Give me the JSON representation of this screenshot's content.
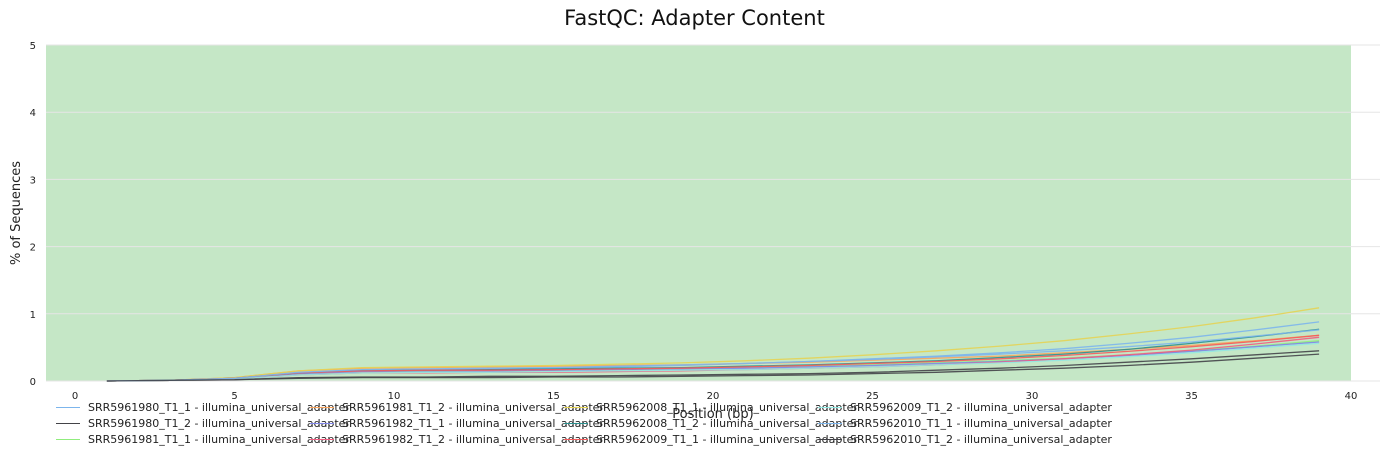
{
  "chart_data": {
    "type": "line",
    "title": "FastQC: Adapter Content",
    "xlabel": "Position (bp)",
    "ylabel": "% of Sequences",
    "xlim": [
      0,
      40
    ],
    "ylim": [
      0,
      5
    ],
    "xticks": [
      0,
      5,
      10,
      15,
      20,
      25,
      30,
      35,
      40
    ],
    "yticks": [
      0,
      1,
      2,
      3,
      4,
      5
    ],
    "background_band": {
      "from": 0,
      "to": 5,
      "color": "#c5e7c6",
      "x_to": 40
    },
    "grid": true,
    "legend_position": "bottom",
    "x": [
      1,
      3,
      5,
      7,
      9,
      11,
      13,
      15,
      17,
      19,
      21,
      23,
      25,
      27,
      29,
      31,
      33,
      35,
      37,
      39
    ],
    "series": [
      {
        "name": "SRR5961980_T1_1 - illumina_universal_adapter",
        "color": "#7cb5ec",
        "values": [
          0,
          0.01,
          0.04,
          0.12,
          0.16,
          0.17,
          0.18,
          0.19,
          0.21,
          0.23,
          0.26,
          0.29,
          0.33,
          0.37,
          0.42,
          0.48,
          0.56,
          0.65,
          0.76,
          0.88
        ]
      },
      {
        "name": "SRR5961980_T1_2 - illumina_universal_adapter",
        "color": "#434348",
        "values": [
          0,
          0.01,
          0.02,
          0.04,
          0.05,
          0.05,
          0.05,
          0.06,
          0.06,
          0.07,
          0.08,
          0.09,
          0.11,
          0.13,
          0.16,
          0.19,
          0.23,
          0.28,
          0.34,
          0.4
        ]
      },
      {
        "name": "SRR5961981_T1_1 - illumina_universal_adapter",
        "color": "#90ed7d",
        "values": [
          0,
          0.01,
          0.03,
          0.1,
          0.14,
          0.14,
          0.15,
          0.16,
          0.17,
          0.18,
          0.2,
          0.22,
          0.24,
          0.27,
          0.3,
          0.34,
          0.39,
          0.45,
          0.52,
          0.6
        ]
      },
      {
        "name": "SRR5961981_T1_2 - illumina_universal_adapter",
        "color": "#f7a35c",
        "values": [
          0,
          0.01,
          0.05,
          0.15,
          0.19,
          0.2,
          0.21,
          0.22,
          0.23,
          0.24,
          0.26,
          0.28,
          0.31,
          0.34,
          0.37,
          0.42,
          0.47,
          0.53,
          0.6,
          0.68
        ]
      },
      {
        "name": "SRR5961982_T1_1 - illumina_universal_adapter",
        "color": "#8085e9",
        "values": [
          0,
          0.01,
          0.04,
          0.11,
          0.14,
          0.15,
          0.15,
          0.16,
          0.17,
          0.18,
          0.19,
          0.21,
          0.23,
          0.26,
          0.29,
          0.33,
          0.38,
          0.44,
          0.51,
          0.58
        ]
      },
      {
        "name": "SRR5961982_T1_2 - illumina_universal_adapter",
        "color": "#f15c80",
        "values": [
          0,
          0.01,
          0.03,
          0.09,
          0.12,
          0.12,
          0.13,
          0.13,
          0.14,
          0.15,
          0.17,
          0.19,
          0.21,
          0.24,
          0.28,
          0.33,
          0.39,
          0.46,
          0.55,
          0.65
        ]
      },
      {
        "name": "SRR5962008_T1_1 - illumina_universal_adapter",
        "color": "#e4d354",
        "values": [
          0,
          0.01,
          0.05,
          0.15,
          0.2,
          0.21,
          0.22,
          0.23,
          0.25,
          0.27,
          0.3,
          0.34,
          0.39,
          0.45,
          0.52,
          0.6,
          0.7,
          0.81,
          0.94,
          1.09
        ]
      },
      {
        "name": "SRR5962008_T1_2 - illumina_universal_adapter",
        "color": "#2b908f",
        "values": [
          0,
          0.01,
          0.04,
          0.12,
          0.16,
          0.16,
          0.17,
          0.18,
          0.19,
          0.2,
          0.22,
          0.24,
          0.27,
          0.3,
          0.35,
          0.4,
          0.47,
          0.56,
          0.66,
          0.77
        ]
      },
      {
        "name": "SRR5962009_T1_1 - illumina_universal_adapter",
        "color": "#f45b5b",
        "values": [
          0,
          0.01,
          0.04,
          0.12,
          0.15,
          0.16,
          0.16,
          0.17,
          0.18,
          0.19,
          0.21,
          0.23,
          0.26,
          0.29,
          0.33,
          0.38,
          0.44,
          0.51,
          0.59,
          0.68
        ]
      },
      {
        "name": "SRR5962009_T1_2 - illumina_universal_adapter",
        "color": "#91e8e1",
        "values": [
          0,
          0.01,
          0.03,
          0.09,
          0.12,
          0.13,
          0.13,
          0.14,
          0.15,
          0.16,
          0.17,
          0.19,
          0.21,
          0.24,
          0.27,
          0.31,
          0.36,
          0.42,
          0.49,
          0.56
        ]
      },
      {
        "name": "SRR5962010_T1_1 - illumina_universal_adapter",
        "color": "#7cb5ec",
        "values": [
          0,
          0.01,
          0.04,
          0.13,
          0.17,
          0.18,
          0.19,
          0.2,
          0.22,
          0.24,
          0.26,
          0.29,
          0.32,
          0.36,
          0.4,
          0.45,
          0.51,
          0.58,
          0.67,
          0.76
        ]
      },
      {
        "name": "SRR5962010_T1_2 - illumina_universal_adapter",
        "color": "#434348",
        "values": [
          0,
          0.01,
          0.02,
          0.05,
          0.06,
          0.06,
          0.07,
          0.07,
          0.08,
          0.09,
          0.1,
          0.11,
          0.13,
          0.16,
          0.19,
          0.23,
          0.28,
          0.33,
          0.39,
          0.45
        ]
      }
    ]
  }
}
